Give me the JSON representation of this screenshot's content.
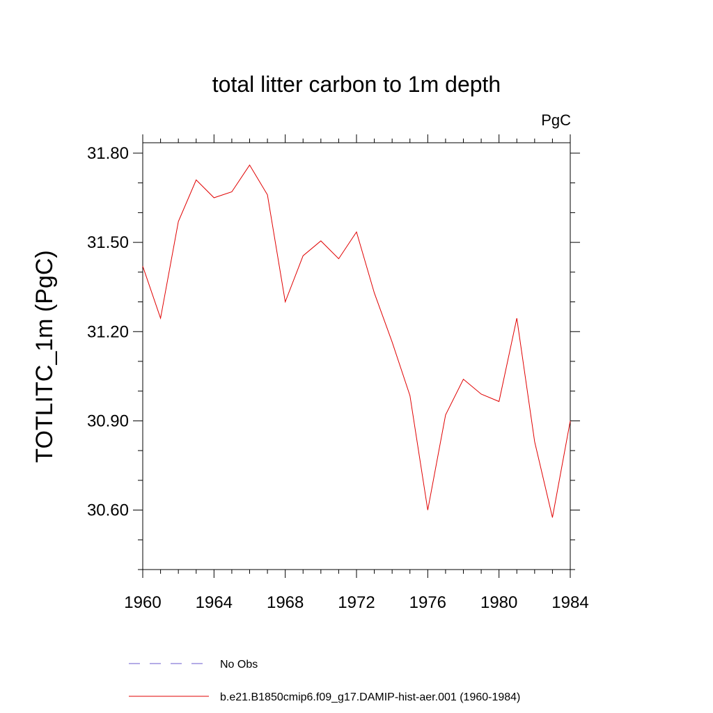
{
  "chart_data": {
    "type": "line",
    "title": "total litter carbon to 1m depth",
    "units_label": "PgC",
    "ylabel": "TOTLITC_1m  (PgC)",
    "xlabel": "",
    "xlim": [
      1960,
      1984
    ],
    "ylim": [
      30.4,
      31.835
    ],
    "x_ticks": [
      1960,
      1964,
      1968,
      1972,
      1976,
      1980,
      1984
    ],
    "x_tick_labels": [
      "1960",
      "1964",
      "1968",
      "1972",
      "1976",
      "1980",
      "1984"
    ],
    "y_ticks": [
      30.6,
      30.9,
      31.2,
      31.5,
      31.8
    ],
    "y_tick_labels": [
      "30.60",
      "30.90",
      "31.20",
      "31.50",
      "31.80"
    ],
    "grid": false,
    "legend_position": "bottom",
    "series": [
      {
        "name": "b.e21.B1850cmip6.f09_g17.DAMIP-hist-aer.001 (1960-1984)",
        "color": "#e00000",
        "style": "solid",
        "x": [
          1960,
          1961,
          1962,
          1963,
          1964,
          1965,
          1966,
          1967,
          1968,
          1969,
          1970,
          1971,
          1972,
          1973,
          1974,
          1975,
          1976,
          1977,
          1978,
          1979,
          1980,
          1981,
          1982,
          1983,
          1984
        ],
        "y": [
          31.42,
          31.245,
          31.57,
          31.71,
          31.65,
          31.67,
          31.76,
          31.66,
          31.3,
          31.455,
          31.505,
          31.445,
          31.535,
          31.33,
          31.165,
          30.985,
          30.6,
          30.92,
          31.04,
          30.99,
          30.965,
          31.245,
          30.83,
          30.575,
          30.9
        ]
      }
    ],
    "legend": [
      {
        "label": "No Obs",
        "color": "#6a5acd",
        "style": "dashed"
      },
      {
        "label": "b.e21.B1850cmip6.f09_g17.DAMIP-hist-aer.001 (1960-1984)",
        "color": "#e00000",
        "style": "solid"
      }
    ]
  }
}
